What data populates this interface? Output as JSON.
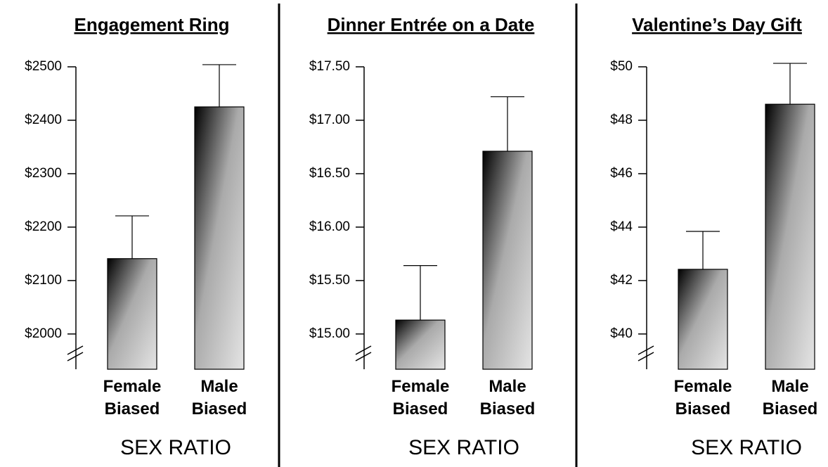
{
  "chart_data": [
    {
      "type": "bar",
      "title": "Engagement Ring",
      "x_label": "SEX RATIO",
      "categories": [
        "Female Biased",
        "Male Biased"
      ],
      "values": [
        2141,
        2425
      ],
      "errors": [
        80,
        79
      ],
      "ylim": [
        1934,
        2500
      ],
      "yticks": [
        {
          "value": 2000,
          "label": "$2000"
        },
        {
          "value": 2100,
          "label": "$2100"
        },
        {
          "value": 2200,
          "label": "$2200"
        },
        {
          "value": 2300,
          "label": "$2300"
        },
        {
          "value": 2400,
          "label": "$2400"
        },
        {
          "value": 2500,
          "label": "$2500"
        }
      ]
    },
    {
      "type": "bar",
      "title": "Dinner Entrée on a Date",
      "x_label": "SEX RATIO",
      "categories": [
        "Female Biased",
        "Male Biased"
      ],
      "values": [
        15.13,
        16.71
      ],
      "errors": [
        0.51,
        0.51
      ],
      "ylim": [
        14.67,
        17.5
      ],
      "yticks": [
        {
          "value": 15,
          "label": "$15.00"
        },
        {
          "value": 15.5,
          "label": "$15.50"
        },
        {
          "value": 16,
          "label": "$16.00"
        },
        {
          "value": 16.5,
          "label": "$16.50"
        },
        {
          "value": 17,
          "label": "$17.00"
        },
        {
          "value": 17.5,
          "label": "$17.50"
        }
      ]
    },
    {
      "type": "bar",
      "title": "Valentine’s Day Gift",
      "x_label": "SEX RATIO",
      "categories": [
        "Female Biased",
        "Male Biased"
      ],
      "values": [
        42.42,
        48.6
      ],
      "errors": [
        1.42,
        1.53
      ],
      "ylim": [
        38.68,
        50
      ],
      "yticks": [
        {
          "value": 40,
          "label": "$40"
        },
        {
          "value": 42,
          "label": "$42"
        },
        {
          "value": 44,
          "label": "$44"
        },
        {
          "value": 46,
          "label": "$46"
        },
        {
          "value": 48,
          "label": "$48"
        },
        {
          "value": 50,
          "label": "$50"
        }
      ]
    }
  ]
}
